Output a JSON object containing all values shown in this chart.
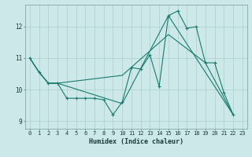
{
  "xlabel": "Humidex (Indice chaleur)",
  "xlim": [
    -0.5,
    23.5
  ],
  "ylim": [
    8.75,
    12.7
  ],
  "yticks": [
    9,
    10,
    11,
    12
  ],
  "xticks": [
    0,
    1,
    2,
    3,
    4,
    5,
    6,
    7,
    8,
    9,
    10,
    11,
    12,
    13,
    14,
    15,
    16,
    17,
    18,
    19,
    20,
    21,
    22,
    23
  ],
  "bg_color": "#cce8e8",
  "grid_color": "#aacece",
  "line_color": "#1a7a6e",
  "line1_x": [
    0,
    1,
    2,
    3,
    4,
    5,
    6,
    7,
    8,
    9,
    10,
    11,
    12,
    13,
    14,
    15,
    16,
    17,
    18,
    19,
    20,
    21,
    22
  ],
  "line1_y": [
    11.0,
    10.55,
    10.2,
    10.2,
    9.72,
    9.72,
    9.72,
    9.72,
    9.67,
    9.2,
    9.6,
    10.7,
    10.65,
    11.1,
    10.1,
    12.35,
    12.5,
    11.95,
    12.0,
    10.85,
    10.85,
    9.9,
    9.2
  ],
  "line2_x": [
    0,
    1,
    2,
    3,
    10,
    15,
    22
  ],
  "line2_y": [
    11.0,
    10.55,
    10.2,
    10.2,
    9.55,
    12.35,
    9.2
  ],
  "line3_x": [
    0,
    1,
    2,
    3,
    10,
    15,
    19,
    22
  ],
  "line3_y": [
    11.0,
    10.55,
    10.2,
    10.2,
    10.45,
    11.75,
    10.85,
    9.2
  ]
}
